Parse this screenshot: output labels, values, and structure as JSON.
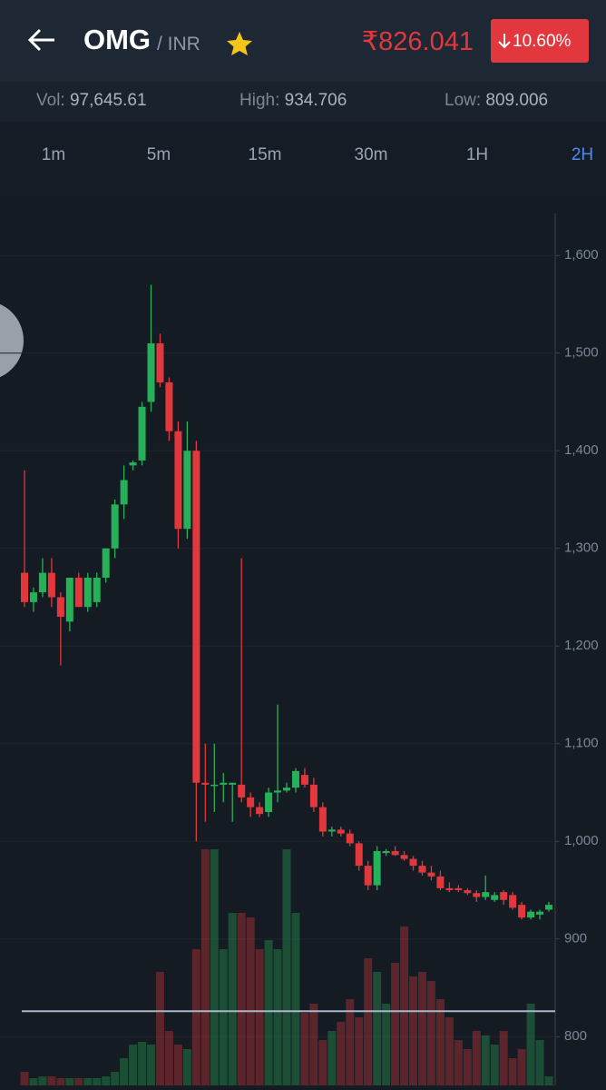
{
  "header": {
    "symbol": "OMG",
    "pair": "/ INR",
    "price": "₹826.041",
    "change": "10.60%"
  },
  "stats": [
    {
      "label": "Vol:",
      "value": "97,645.61"
    },
    {
      "label": "High:",
      "value": "934.706"
    },
    {
      "label": "Low:",
      "value": "809.006"
    }
  ],
  "tabs": [
    {
      "label": "1m"
    },
    {
      "label": "5m"
    },
    {
      "label": "15m"
    },
    {
      "label": "30m"
    },
    {
      "label": "1H"
    },
    {
      "label": "2H",
      "active": true
    }
  ],
  "chart_data": {
    "type": "candlestick",
    "open": [
      1275,
      1245,
      1255,
      1275,
      1250,
      1225,
      1270,
      1240,
      1245,
      1270,
      1300,
      1345,
      1385,
      1390,
      1450,
      1510,
      1470,
      1420,
      1320,
      1400,
      1060,
      1058,
      1058,
      1058,
      1058,
      1045,
      1035,
      1030,
      1050,
      1052,
      1055,
      1068,
      1058,
      1035,
      1010,
      1012,
      1008,
      998,
      975,
      955,
      988,
      990,
      986,
      982,
      975,
      968,
      964,
      952,
      952,
      950,
      947,
      943,
      940,
      948,
      945,
      935,
      922,
      925,
      930
    ],
    "high": [
      1380,
      1260,
      1290,
      1290,
      1255,
      1270,
      1275,
      1275,
      1275,
      1300,
      1350,
      1385,
      1390,
      1450,
      1570,
      1520,
      1475,
      1430,
      1430,
      1410,
      1100,
      1100,
      1070,
      1060,
      1290,
      1050,
      1040,
      1055,
      1140,
      1060,
      1075,
      1075,
      1065,
      1040,
      1015,
      1015,
      1012,
      1000,
      980,
      995,
      992,
      995,
      990,
      985,
      980,
      975,
      970,
      958,
      955,
      952,
      950,
      965,
      948,
      950,
      948,
      938,
      930,
      930,
      938
    ],
    "low": [
      1240,
      1235,
      1250,
      1240,
      1180,
      1215,
      1240,
      1235,
      1240,
      1265,
      1290,
      1330,
      1380,
      1385,
      1440,
      1465,
      1410,
      1300,
      1310,
      1000,
      1020,
      1030,
      1040,
      1020,
      1040,
      1025,
      1025,
      1025,
      1040,
      1050,
      1050,
      1055,
      1030,
      1005,
      1005,
      1005,
      995,
      970,
      950,
      950,
      985,
      985,
      980,
      970,
      965,
      960,
      950,
      948,
      948,
      945,
      938,
      940,
      938,
      935,
      930,
      920,
      920,
      920,
      928
    ],
    "close": [
      1245,
      1255,
      1275,
      1250,
      1230,
      1270,
      1240,
      1270,
      1270,
      1300,
      1345,
      1370,
      1388,
      1445,
      1510,
      1470,
      1420,
      1320,
      1400,
      1060,
      1058,
      1058,
      1060,
      1060,
      1045,
      1035,
      1028,
      1050,
      1052,
      1055,
      1072,
      1058,
      1035,
      1010,
      1012,
      1008,
      998,
      975,
      955,
      990,
      990,
      986,
      982,
      975,
      968,
      964,
      952,
      950,
      950,
      947,
      943,
      948,
      945,
      940,
      932,
      922,
      928,
      928,
      935
    ],
    "volume": [
      15,
      8,
      10,
      10,
      8,
      8,
      8,
      8,
      8,
      10,
      15,
      30,
      45,
      48,
      45,
      125,
      60,
      45,
      40,
      150,
      260,
      260,
      150,
      190,
      190,
      185,
      150,
      160,
      150,
      260,
      190,
      80,
      90,
      50,
      60,
      70,
      95,
      75,
      140,
      125,
      90,
      135,
      175,
      120,
      125,
      115,
      95,
      75,
      50,
      40,
      60,
      55,
      45,
      60,
      30,
      40,
      90,
      50,
      10
    ],
    "vlim": [
      0,
      300
    ],
    "last_price": 826.041,
    "ylim": [
      750,
      1643
    ],
    "yticks": [
      {
        "value": 1600,
        "label": "1,600"
      },
      {
        "value": 1500,
        "label": "1,500"
      },
      {
        "value": 1400,
        "label": "1,400"
      },
      {
        "value": 1300,
        "label": "1,300"
      },
      {
        "value": 1200,
        "label": "1,200"
      },
      {
        "value": 1100,
        "label": "1,100"
      },
      {
        "value": 1000,
        "label": "1,000"
      },
      900,
      800
    ],
    "up_color": "#27b05a",
    "down_color": "#e2383d",
    "grid": true
  }
}
